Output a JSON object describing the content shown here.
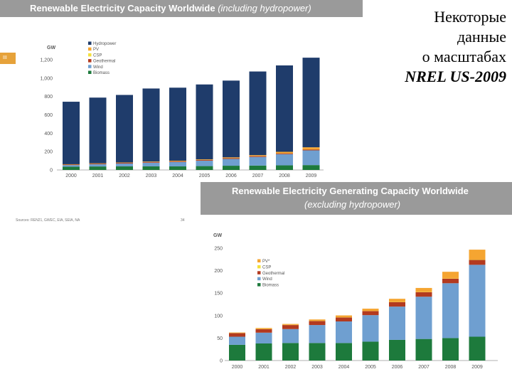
{
  "chart1": {
    "title": "Renewable Electricity Capacity Worldwide",
    "title_suffix": "(including hydropower)"
  },
  "chart2": {
    "title": "Renewable Electricity Generating Capacity Worldwide",
    "title_suffix": "(excluding hydropower)"
  },
  "side_text": {
    "line1": "Некоторые",
    "line2": "данные",
    "line3": "о масштабах",
    "line4": "NREL US-2009"
  },
  "tab_label": "III",
  "source_text": "Sources: REN21, GWEC, EIA, SEIA, NA",
  "page_number": "34",
  "colors": {
    "hydropower": "#1f3c6b",
    "pv": "#f5a531",
    "csp": "#f3e03b",
    "geothermal": "#b33a1f",
    "wind": "#6f9fd0",
    "biomass": "#1d7a3c",
    "title_bg": "#9a9a9a",
    "tab": "#e6a23a"
  },
  "chart_data": [
    {
      "type": "bar",
      "stacked": true,
      "ylabel": "GW",
      "ylim": [
        0,
        1300
      ],
      "yticks": [
        "0",
        "200",
        "400",
        "600",
        "800",
        "1,000",
        "1,200"
      ],
      "categories": [
        "2000",
        "2001",
        "2002",
        "2003",
        "2004",
        "2005",
        "2006",
        "2007",
        "2008",
        "2009"
      ],
      "series": [
        {
          "name": "Biomass",
          "color": "biomass",
          "values": [
            35,
            38,
            39,
            39,
            39,
            42,
            46,
            48,
            50,
            53
          ]
        },
        {
          "name": "Wind",
          "color": "wind",
          "values": [
            18,
            24,
            31,
            40,
            48,
            59,
            74,
            94,
            122,
            160
          ]
        },
        {
          "name": "Geothermal",
          "color": "geothermal",
          "values": [
            8,
            8,
            9,
            9,
            9,
            9,
            10,
            10,
            10,
            11
          ]
        },
        {
          "name": "CSP",
          "color": "csp",
          "values": [
            0.4,
            0.4,
            0.4,
            0.4,
            0.4,
            0.4,
            0.4,
            0.5,
            0.5,
            0.7
          ]
        },
        {
          "name": "PV",
          "color": "pv",
          "values": [
            1,
            2,
            2,
            3,
            4,
            5,
            7,
            9,
            15,
            22
          ]
        },
        {
          "name": "Hydropower",
          "color": "hydropower",
          "values": [
            680,
            715,
            735,
            795,
            795,
            815,
            835,
            910,
            940,
            975
          ]
        }
      ],
      "legend_order": [
        "Hydropower",
        "PV",
        "CSP",
        "Geothermal",
        "Wind",
        "Biomass"
      ],
      "legend_position": "top-right",
      "grid": false
    },
    {
      "type": "bar",
      "stacked": true,
      "ylabel": "GW",
      "ylim": [
        0,
        250
      ],
      "yticks": [
        "0",
        "50",
        "100",
        "150",
        "200",
        "250"
      ],
      "categories": [
        "2000",
        "2001",
        "2002",
        "2003",
        "2004",
        "2005",
        "2006",
        "2007",
        "2008",
        "2009"
      ],
      "series": [
        {
          "name": "Biomass",
          "color": "biomass",
          "values": [
            35,
            38,
            39,
            39,
            39,
            42,
            46,
            48,
            50,
            53
          ]
        },
        {
          "name": "Wind",
          "color": "wind",
          "values": [
            18,
            24,
            31,
            40,
            48,
            59,
            74,
            94,
            122,
            160
          ]
        },
        {
          "name": "Geothermal",
          "color": "geothermal",
          "values": [
            8,
            8,
            9,
            9,
            9,
            9,
            10,
            10,
            10,
            11
          ]
        },
        {
          "name": "CSP",
          "color": "csp",
          "values": [
            0.4,
            0.4,
            0.4,
            0.4,
            0.4,
            0.4,
            0.4,
            0.5,
            0.5,
            0.7
          ]
        },
        {
          "name": "PV*",
          "color": "pv",
          "values": [
            1,
            2,
            2,
            3,
            4,
            5,
            7,
            9,
            15,
            22
          ]
        }
      ],
      "legend_labels": [
        "PV*",
        "CSP",
        "Geothermal",
        "Wind",
        "Biomass"
      ],
      "legend_position": "top-left",
      "grid": false
    }
  ]
}
